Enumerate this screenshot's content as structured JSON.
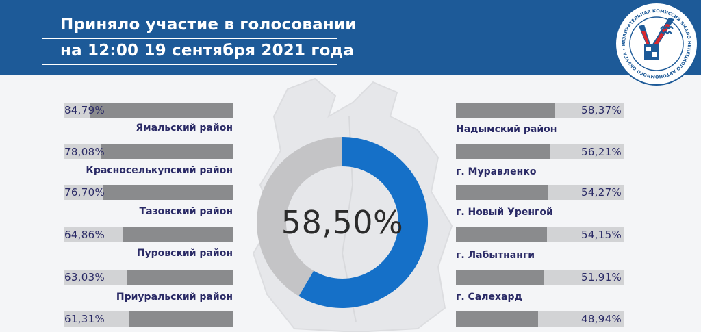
{
  "header": {
    "title_line1": "Приняло участие в голосовании",
    "title_line2": "на 12:00 19 сентября 2021 года"
  },
  "emblem": {
    "icon": "election-commission-emblem-icon",
    "text": "ИЗБИРАТЕЛЬНАЯ КОМИССИЯ ЯМАЛО-НЕНЕЦКОГО АВТОНОМНОГО ОКРУГА • РОССИЙСКАЯ ФЕДЕРАЦИЯ •"
  },
  "colors": {
    "header_bg": "#1d5a98",
    "bar_fill": "#8a8b8d",
    "bar_track": "#d2d3d5",
    "donut_value": "#1570c8",
    "donut_rest": "#c4c4c6",
    "label_text": "#2a2a66"
  },
  "total": {
    "value": 58.5,
    "label": "58,50%"
  },
  "left_districts": [
    {
      "name": "Ямальский район",
      "value": 84.79,
      "label": "84,79%"
    },
    {
      "name": "Красноселькупский район",
      "value": 78.08,
      "label": "78,08%"
    },
    {
      "name": "Тазовский район",
      "value": 76.7,
      "label": "76,70%"
    },
    {
      "name": "Пуровский район",
      "value": 64.86,
      "label": "64,86%"
    },
    {
      "name": "Приуральский район",
      "value": 63.03,
      "label": "63,03%"
    },
    {
      "name": "",
      "value": 61.31,
      "label": "61,31%"
    }
  ],
  "right_districts": [
    {
      "name": "Надымский район",
      "value": 58.37,
      "label": "58,37%"
    },
    {
      "name": "г. Муравленко",
      "value": 56.21,
      "label": "56,21%"
    },
    {
      "name": "г. Новый Уренгой",
      "value": 54.27,
      "label": "54,27%"
    },
    {
      "name": "г. Лабытнанги",
      "value": 54.15,
      "label": "54,15%"
    },
    {
      "name": "г. Салехард",
      "value": 51.91,
      "label": "51,91%"
    },
    {
      "name": "",
      "value": 48.94,
      "label": "48,94%"
    }
  ]
}
